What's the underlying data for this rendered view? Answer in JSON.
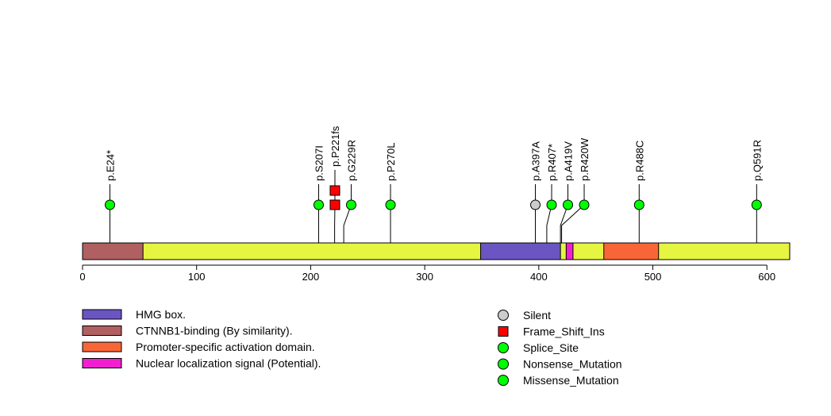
{
  "chart_data": {
    "type": "lollipop",
    "protein_length": 620,
    "xlim": [
      0,
      620
    ],
    "x_ticks": [
      0,
      100,
      200,
      300,
      400,
      500,
      600
    ],
    "backbone_color": "#e6f542",
    "domains": [
      {
        "name": "HMG box.",
        "start": 350,
        "end": 419,
        "color": "#6a55c2"
      },
      {
        "name": "CTNNB1-binding (By similarity).",
        "start": 1,
        "end": 53,
        "color": "#b06060"
      },
      {
        "name": "Promoter-specific activation domain.",
        "start": 458,
        "end": 505,
        "color": "#f86638"
      },
      {
        "name": "Nuclear localization signal (Potential).",
        "start": 425,
        "end": 430,
        "color": "#f020d0"
      }
    ],
    "mutations": [
      {
        "label": "p.E24*",
        "position": 24,
        "type": "Nonsense_Mutation",
        "count": 1
      },
      {
        "label": "p.S207I",
        "position": 207,
        "type": "Missense_Mutation",
        "count": 1
      },
      {
        "label": "p.P221fs",
        "position": 221,
        "type": "Frame_Shift_Ins",
        "count": 2
      },
      {
        "label": "p.G229R",
        "position": 229,
        "type": "Missense_Mutation",
        "count": 1
      },
      {
        "label": "p.P270L",
        "position": 270,
        "type": "Missense_Mutation",
        "count": 1
      },
      {
        "label": "p.A397A",
        "position": 397,
        "type": "Silent",
        "count": 1
      },
      {
        "label": "p.R407*",
        "position": 407,
        "type": "Nonsense_Mutation",
        "count": 1
      },
      {
        "label": "p.A419V",
        "position": 419,
        "type": "Missense_Mutation",
        "count": 1
      },
      {
        "label": "p.R420W",
        "position": 420,
        "type": "Missense_Mutation",
        "count": 1
      },
      {
        "label": "p.R488C",
        "position": 488,
        "type": "Missense_Mutation",
        "count": 1
      },
      {
        "label": "p.Q591R",
        "position": 591,
        "type": "Missense_Mutation",
        "count": 1
      }
    ],
    "mutation_legend": [
      {
        "name": "Silent",
        "color": "#cccccc",
        "shape": "circle"
      },
      {
        "name": "Frame_Shift_Ins",
        "color": "#ff0000",
        "shape": "square"
      },
      {
        "name": "Splice_Site",
        "color": "#00ff00",
        "shape": "circle"
      },
      {
        "name": "Nonsense_Mutation",
        "color": "#00ff00",
        "shape": "circle"
      },
      {
        "name": "Missense_Mutation",
        "color": "#00ff00",
        "shape": "circle"
      }
    ]
  }
}
